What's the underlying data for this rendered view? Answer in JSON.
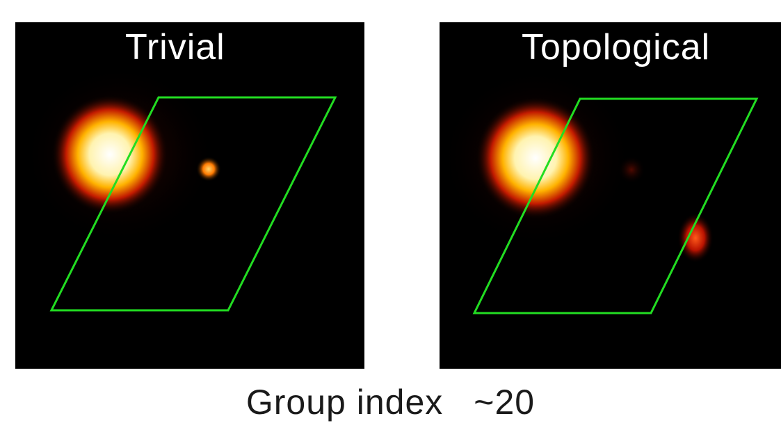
{
  "figure": {
    "panels": [
      {
        "id": "left",
        "title": "Trivial"
      },
      {
        "id": "right",
        "title": "Topological"
      }
    ],
    "caption": {
      "label": "Group index",
      "value": "~20"
    },
    "colors": {
      "background": "#000000",
      "unit_cell_outline": "#22dd22",
      "glow_core": "#ffffff",
      "glow_mid": "#ffcc33",
      "glow_edge": "#cc2200"
    }
  }
}
